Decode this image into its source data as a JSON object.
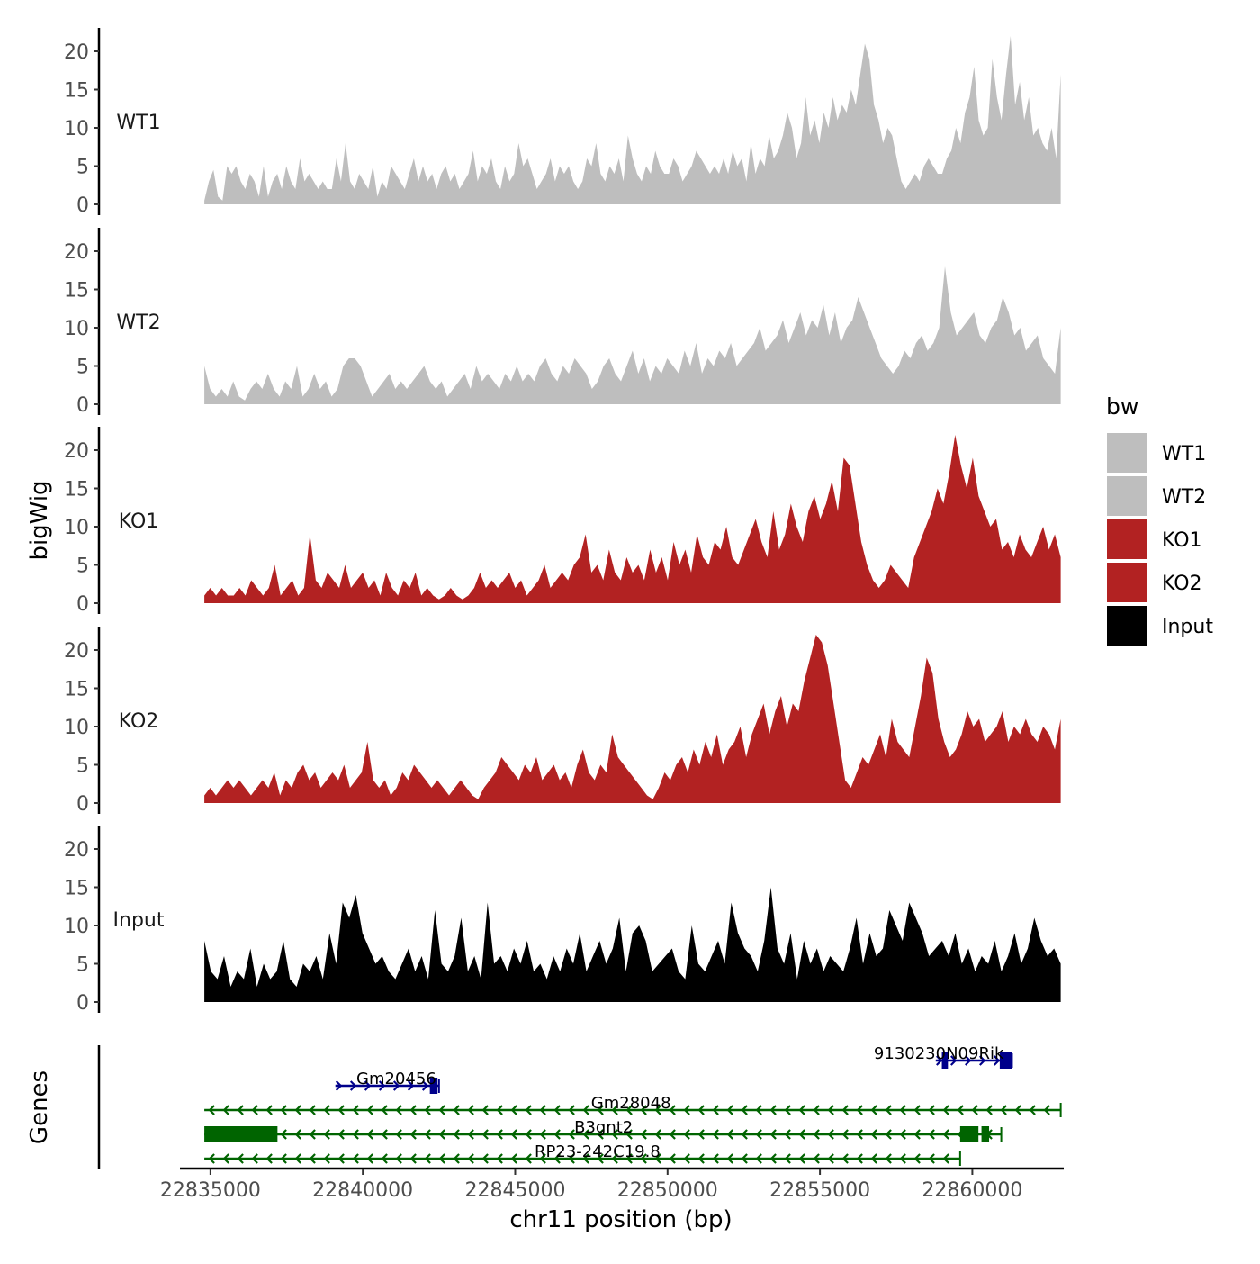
{
  "chart_data": {
    "type": "area",
    "title": "",
    "xlabel": "chr11 position (bp)",
    "ylabel": "bigWig",
    "genes_label": "Genes",
    "xlim": [
      22834000,
      22863000
    ],
    "ylim": [
      0,
      22
    ],
    "x_ticks": [
      22835000,
      22840000,
      22845000,
      22850000,
      22855000,
      22860000
    ],
    "y_ticks": [
      0,
      5,
      10,
      15,
      20
    ],
    "legend": {
      "title": "bw",
      "position": "right",
      "entries": [
        {
          "label": "WT1",
          "color": "#bebebe"
        },
        {
          "label": "WT2",
          "color": "#bebebe"
        },
        {
          "label": "KO1",
          "color": "#b22222"
        },
        {
          "label": "KO2",
          "color": "#b22222"
        },
        {
          "label": "Input",
          "color": "#000000"
        }
      ]
    },
    "track_x_range": [
      22834800,
      22862900
    ],
    "tracks": [
      {
        "name": "WT1",
        "color": "#bebebe",
        "values": [
          0.5,
          3,
          4.5,
          1,
          0.5,
          5,
          4,
          5,
          3,
          2,
          4,
          3,
          1,
          5,
          1,
          3,
          4,
          2,
          5,
          3,
          2,
          6,
          3,
          4,
          3,
          2,
          3,
          2,
          2,
          6,
          3,
          8,
          3,
          2,
          4,
          3,
          2,
          5,
          1,
          3,
          2,
          5,
          4,
          3,
          2,
          4,
          6,
          3,
          5,
          3,
          4,
          2,
          4,
          5,
          3,
          4,
          2,
          3,
          4,
          7,
          3,
          5,
          4,
          6,
          3,
          2,
          5,
          3,
          4,
          8,
          5,
          6,
          4,
          2,
          3,
          4,
          6,
          3,
          5,
          4,
          5,
          3,
          2,
          3,
          6,
          5,
          8,
          4,
          3,
          5,
          4,
          6,
          3,
          9,
          6,
          4,
          3,
          5,
          4,
          7,
          5,
          4,
          4,
          6,
          5,
          3,
          4,
          5,
          7,
          6,
          5,
          4,
          5,
          4,
          6,
          4,
          7,
          5,
          6,
          3,
          8,
          4,
          6,
          5,
          9,
          6,
          7,
          9,
          12,
          10,
          6,
          8,
          14,
          9,
          11,
          8,
          12,
          10,
          14,
          11,
          13,
          12,
          15,
          13,
          17,
          21,
          19,
          13,
          11,
          8,
          10,
          9,
          6,
          3,
          2,
          3,
          4,
          3,
          5,
          6,
          5,
          4,
          4,
          6,
          7,
          10,
          8,
          12,
          14,
          18,
          11,
          9,
          10,
          19,
          14,
          11,
          17,
          22,
          13,
          16,
          11,
          14,
          9,
          10,
          8,
          7,
          10,
          6,
          17
        ]
      },
      {
        "name": "WT2",
        "color": "#bebebe",
        "values": [
          5,
          2,
          1,
          2,
          1,
          3,
          1,
          0.5,
          2,
          3,
          2,
          4,
          2,
          1,
          3,
          2,
          5,
          1,
          2,
          4,
          2,
          3,
          1,
          2,
          5,
          6,
          6,
          5,
          3,
          1,
          2,
          3,
          4,
          2,
          3,
          2,
          3,
          4,
          5,
          3,
          2,
          3,
          1,
          2,
          3,
          4,
          2,
          5,
          3,
          4,
          3,
          2,
          4,
          3,
          5,
          3,
          4,
          3,
          5,
          6,
          4,
          3,
          5,
          4,
          6,
          5,
          4,
          2,
          3,
          5,
          6,
          4,
          3,
          5,
          7,
          4,
          6,
          3,
          5,
          4,
          6,
          5,
          4,
          7,
          5,
          8,
          4,
          6,
          5,
          7,
          6,
          8,
          5,
          6,
          7,
          8,
          10,
          7,
          8,
          9,
          11,
          8,
          10,
          12,
          9,
          11,
          10,
          13,
          9,
          12,
          8,
          10,
          11,
          14,
          12,
          10,
          8,
          6,
          5,
          4,
          5,
          7,
          6,
          8,
          9,
          7,
          8,
          10,
          18,
          12,
          9,
          10,
          11,
          12,
          9,
          8,
          10,
          11,
          14,
          12,
          9,
          10,
          7,
          8,
          9,
          6,
          5,
          4,
          10
        ]
      },
      {
        "name": "KO1",
        "color": "#b22222",
        "values": [
          1,
          2,
          1,
          2,
          1,
          1,
          2,
          1,
          3,
          2,
          1,
          2,
          5,
          1,
          2,
          3,
          1,
          2,
          9,
          3,
          2,
          4,
          3,
          2,
          5,
          2,
          3,
          4,
          2,
          3,
          1,
          4,
          2,
          1,
          3,
          2,
          4,
          1,
          2,
          1,
          0.5,
          1,
          2,
          1,
          0.5,
          1,
          2,
          4,
          2,
          3,
          2,
          3,
          4,
          2,
          3,
          1,
          2,
          3,
          5,
          2,
          3,
          4,
          3,
          5,
          6,
          9,
          4,
          5,
          3,
          7,
          4,
          3,
          6,
          4,
          5,
          3,
          7,
          4,
          6,
          3,
          8,
          5,
          7,
          4,
          9,
          6,
          5,
          8,
          7,
          10,
          6,
          5,
          7,
          9,
          11,
          8,
          6,
          12,
          7,
          9,
          13,
          10,
          8,
          12,
          14,
          11,
          13,
          16,
          12,
          19,
          18,
          13,
          8,
          5,
          3,
          2,
          3,
          5,
          4,
          3,
          2,
          6,
          8,
          10,
          12,
          15,
          13,
          17,
          22,
          18,
          15,
          19,
          14,
          12,
          10,
          11,
          7,
          8,
          6,
          9,
          7,
          6,
          8,
          10,
          7,
          9,
          6
        ]
      },
      {
        "name": "KO2",
        "color": "#b22222",
        "values": [
          1,
          2,
          1,
          2,
          3,
          2,
          3,
          2,
          1,
          2,
          3,
          2,
          4,
          1,
          3,
          2,
          4,
          5,
          3,
          4,
          2,
          3,
          4,
          3,
          5,
          2,
          3,
          4,
          8,
          3,
          2,
          3,
          1,
          2,
          4,
          3,
          5,
          4,
          3,
          2,
          3,
          2,
          1,
          2,
          3,
          2,
          1,
          0.5,
          2,
          3,
          4,
          6,
          5,
          4,
          3,
          5,
          4,
          6,
          3,
          4,
          5,
          3,
          4,
          2,
          5,
          7,
          4,
          3,
          5,
          4,
          9,
          6,
          5,
          4,
          3,
          2,
          1,
          0.5,
          2,
          4,
          3,
          5,
          6,
          4,
          7,
          5,
          8,
          6,
          9,
          5,
          7,
          8,
          10,
          6,
          9,
          11,
          13,
          9,
          12,
          14,
          10,
          13,
          12,
          16,
          19,
          22,
          21,
          18,
          13,
          8,
          3,
          2,
          4,
          6,
          5,
          7,
          9,
          6,
          11,
          8,
          7,
          6,
          10,
          14,
          19,
          17,
          11,
          8,
          6,
          7,
          9,
          12,
          10,
          11,
          8,
          9,
          10,
          12,
          8,
          10,
          9,
          11,
          9,
          8,
          10,
          9,
          7,
          11
        ]
      },
      {
        "name": "Input",
        "color": "#000000",
        "values": [
          8,
          4,
          3,
          6,
          2,
          4,
          3,
          7,
          2,
          5,
          3,
          4,
          8,
          3,
          2,
          5,
          4,
          6,
          3,
          9,
          5,
          13,
          11,
          14,
          9,
          7,
          5,
          6,
          4,
          3,
          5,
          7,
          4,
          6,
          3,
          12,
          5,
          4,
          6,
          11,
          4,
          6,
          3,
          13,
          5,
          6,
          4,
          7,
          5,
          8,
          4,
          5,
          3,
          6,
          4,
          7,
          5,
          9,
          4,
          6,
          8,
          5,
          7,
          11,
          4,
          9,
          10,
          8,
          4,
          5,
          6,
          7,
          4,
          3,
          10,
          5,
          4,
          6,
          8,
          5,
          13,
          9,
          7,
          6,
          4,
          8,
          15,
          7,
          5,
          9,
          3,
          8,
          5,
          7,
          4,
          6,
          5,
          4,
          7,
          11,
          5,
          9,
          6,
          7,
          12,
          10,
          8,
          13,
          11,
          9,
          6,
          7,
          8,
          6,
          9,
          5,
          7,
          4,
          6,
          5,
          8,
          4,
          6,
          9,
          5,
          7,
          11,
          8,
          6,
          7,
          5
        ]
      }
    ],
    "genes": [
      {
        "name": "9130230N09Rik",
        "start": 22858800,
        "end": 22861300,
        "strand": "+",
        "row": 0,
        "color": "#00008b",
        "exons": [
          [
            22859000,
            22859200
          ],
          [
            22860900,
            22861300
          ]
        ],
        "label_x": 22858900
      },
      {
        "name": "Gm20456",
        "start": 22839100,
        "end": 22842500,
        "strand": "+",
        "row": 1,
        "color": "#00008b",
        "exons": [
          [
            22842200,
            22842450
          ]
        ],
        "label_x": 22841100
      },
      {
        "name": "Gm28048",
        "start": 22834800,
        "end": 22862900,
        "strand": "-",
        "row": 2,
        "color": "#006400",
        "exons": [],
        "label_x": 22848800
      },
      {
        "name": "B3gnt2",
        "start": 22834800,
        "end": 22860950,
        "strand": "-",
        "row": 3,
        "color": "#006400",
        "exons": [
          [
            22834800,
            22837200
          ],
          [
            22859600,
            22860200
          ],
          [
            22860300,
            22860550
          ]
        ],
        "label_x": 22847900
      },
      {
        "name": "RP23-242C19.8",
        "start": 22834800,
        "end": 22859600,
        "strand": "-",
        "row": 4,
        "color": "#006400",
        "exons": [],
        "label_x": 22847700
      }
    ]
  }
}
